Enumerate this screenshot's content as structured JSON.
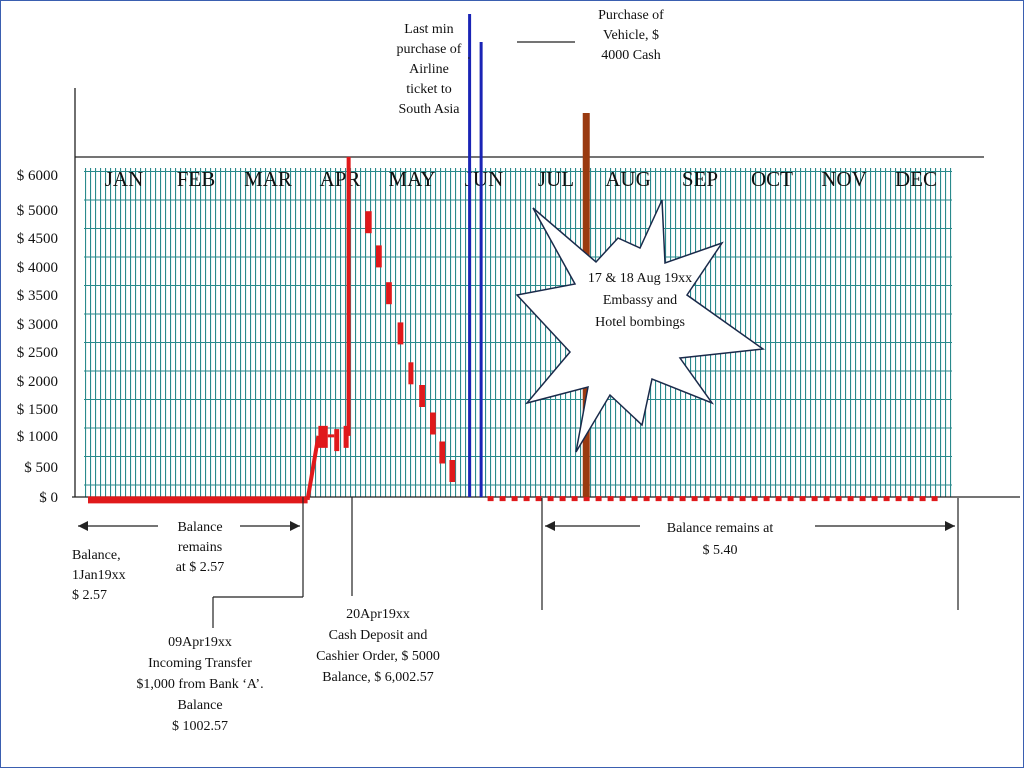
{
  "chart_data": {
    "type": "line",
    "title": "",
    "xlabel": "",
    "ylabel": "",
    "categories": [
      "JAN",
      "FEB",
      "MAR",
      "APR",
      "MAY",
      "JUN",
      "JUL",
      "AUG",
      "SEP",
      "OCT",
      "NOV",
      "DEC"
    ],
    "y_ticks": [
      {
        "value": 6000,
        "label": "$ 6000"
      },
      {
        "value": 5000,
        "label": "$ 5000"
      },
      {
        "value": 4500,
        "label": "$ 4500"
      },
      {
        "value": 4000,
        "label": "$ 4000"
      },
      {
        "value": 3500,
        "label": "$ 3500"
      },
      {
        "value": 3000,
        "label": "$ 3000"
      },
      {
        "value": 2500,
        "label": "$ 2500"
      },
      {
        "value": 2000,
        "label": "$ 2000"
      },
      {
        "value": 1500,
        "label": "$ 1500"
      },
      {
        "value": 1000,
        "label": "$ 1000"
      },
      {
        "value": 500,
        "label": "$ 500"
      },
      {
        "value": 0,
        "label": "$ 0"
      }
    ],
    "grid": true,
    "balance_series": {
      "name": "",
      "color": "#e0191b",
      "steps": [
        {
          "x0": 0.0,
          "x1": 3.05,
          "y": 2.57
        },
        {
          "x0": 3.2,
          "x1": 3.33,
          "y": 1002.57
        },
        {
          "x0": 3.42,
          "x1": 3.48,
          "y": 950
        },
        {
          "x0": 3.55,
          "x1": 3.62,
          "y": 1002.57
        },
        {
          "x0": 3.62,
          "x1": 3.67,
          "y": 6002.57
        },
        {
          "x0": 3.85,
          "x1": 3.94,
          "y": 4800
        },
        {
          "x0": 4.0,
          "x1": 4.08,
          "y": 4200
        },
        {
          "x0": 4.14,
          "x1": 4.22,
          "y": 3550
        },
        {
          "x0": 4.3,
          "x1": 4.38,
          "y": 2850
        },
        {
          "x0": 4.45,
          "x1": 4.52,
          "y": 2150
        },
        {
          "x0": 4.6,
          "x1": 4.68,
          "y": 1750
        },
        {
          "x0": 4.75,
          "x1": 4.83,
          "y": 1250
        },
        {
          "x0": 4.88,
          "x1": 4.96,
          "y": 750
        },
        {
          "x0": 5.02,
          "x1": 5.1,
          "y": 450
        }
      ],
      "dotted_tail": {
        "x0": 5.55,
        "x1": 11.8,
        "y": 5.4
      }
    },
    "events": [
      {
        "name": "airline-ticket",
        "x": 5.3,
        "color": "#1a24b5"
      },
      {
        "name": "vehicle-purchase",
        "x": 5.46,
        "color": "#1a24b5"
      },
      {
        "name": "bombing-marker",
        "x": 6.92,
        "color": "#9a3a10"
      }
    ],
    "annotations": {
      "airline": [
        "Last min",
        "purchase of",
        "Airline",
        "ticket to",
        "South Asia"
      ],
      "vehicle": [
        "Purchase of",
        "Vehicle, $",
        "4000 Cash"
      ],
      "bombing": [
        "17 & 18 Aug 19xx",
        "Embassy and",
        "Hotel bombings"
      ],
      "balance_start": [
        "Balance,",
        "1Jan19xx",
        "$ 2.57"
      ],
      "balance_remains": [
        "Balance",
        "remains",
        "at $ 2.57"
      ],
      "apr09": [
        "09Apr19xx",
        "Incoming Transfer",
        "$1,000 from Bank ‘A’.",
        "Balance",
        "$ 1002.57"
      ],
      "apr20": [
        "20Apr19xx",
        "Cash Deposit and",
        "Cashier Order, $ 5000",
        "Balance, $ 6,002.57"
      ],
      "balance_end": [
        "Balance remains at",
        "$ 5.40"
      ]
    }
  }
}
